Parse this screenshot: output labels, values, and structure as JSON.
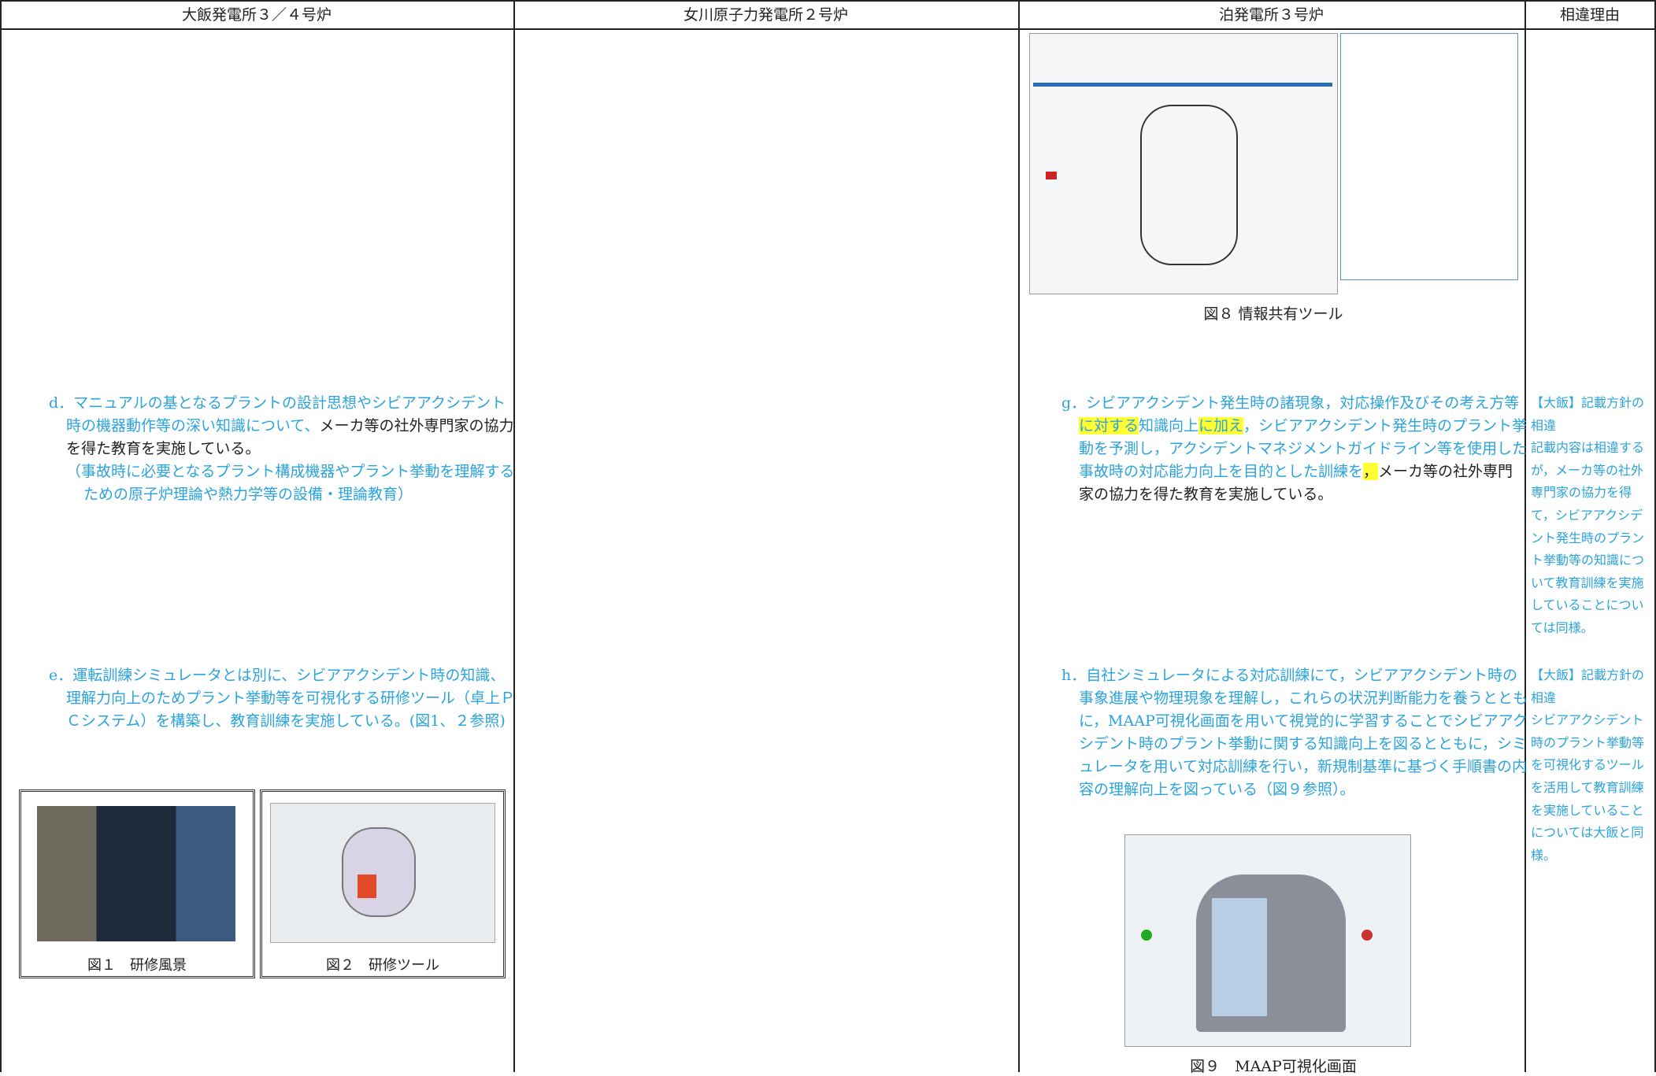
{
  "header": {
    "columns": [
      "大飯発電所３／４号炉",
      "女川原子力発電所２号炉",
      "泊発電所３号炉",
      "相違理由"
    ]
  },
  "ohi": {
    "paragraphs": [
      [
        {
          "text": "d．マニュアルの基となるプラントの設計思想やシビアアクシデント時の機器動作等の深い知識について、",
          "color": "#2ba3dd"
        },
        {
          "text": "メーカ等の社外専門家の協力を得た教育を実施している。",
          "color": "#222222"
        }
      ],
      [
        {
          "text": "（事故時に必要となるプラント構成機器やプラント挙動を理解するための原子炉理論や熱力学等の設備・理論教育）",
          "color": "#2ba3dd"
        }
      ],
      [
        {
          "text": "e．運転訓練シミュレータとは別に、シビアアクシデント時の知識、理解力向上のためプラント挙動等を可視化する研修ツール（卓上ＰＣシステム）を構築し、教育訓練を実施している。(図1、２参照)",
          "color": "#2ba3dd"
        }
      ]
    ],
    "figures": [
      {
        "caption": "図１　研修風景"
      },
      {
        "caption": "図２　研修ツール"
      }
    ]
  },
  "tomari": {
    "figure_8": {
      "caption": "図８ 情報共有ツール"
    },
    "paragraphs": [
      [
        {
          "text": "g．シビアアクシデント発生時の諸現象，対応操作及びその考え方等",
          "color": "#2ba3dd"
        },
        {
          "text": "に対する",
          "color": "#2ba3dd",
          "highlight": "#ffff33"
        },
        {
          "text": "知識向上",
          "color": "#2ba3dd"
        },
        {
          "text": "に加え",
          "color": "#2ba3dd",
          "highlight": "#ffff33"
        },
        {
          "text": "，シビアアクシデント発生時のプラント挙動を予測し，アクシデントマネジメントガイドライン等を使用した事故時の対応能力向上を目的とした訓練を",
          "color": "#2ba3dd"
        },
        {
          "text": "，",
          "color": "#222222",
          "highlight": "#ffff33"
        },
        {
          "text": "メーカ等の社外専門家の協力を得た教育を実施している。",
          "color": "#222222"
        }
      ],
      [
        {
          "text": "h．自社シミュレータによる対応訓練にて，シビアアクシデント時の事象進展や物理現象を理解し，これらの状況判断能力を養うとともに，MAAP可視化画面を用いて視覚的に学習することでシビアアクシデント時のプラント挙動に関する知識向上を図るとともに，シミュレータを用いて対応訓練を行い，新規制基準に基づく手順書の内容の理解向上を図っている（図９参照）。",
          "color": "#2ba3dd"
        }
      ]
    ],
    "figure_9": {
      "caption": "図９　MAAP可視化画面"
    }
  },
  "reasons": [
    {
      "title": "【大飯】記載方針の相違",
      "text": "記載内容は相違するが，メーカ等の社外専門家の協力を得て，シビアアクシデント発生時のプラント挙動等の知識について教育訓練を実施していることについては同様。"
    },
    {
      "title": "【大飯】記載方針の相違",
      "text": "シビアアクシデント時のプラント挙動等を可視化するツールを活用して教育訓練を実施していることについては大飯と同様。"
    }
  ]
}
